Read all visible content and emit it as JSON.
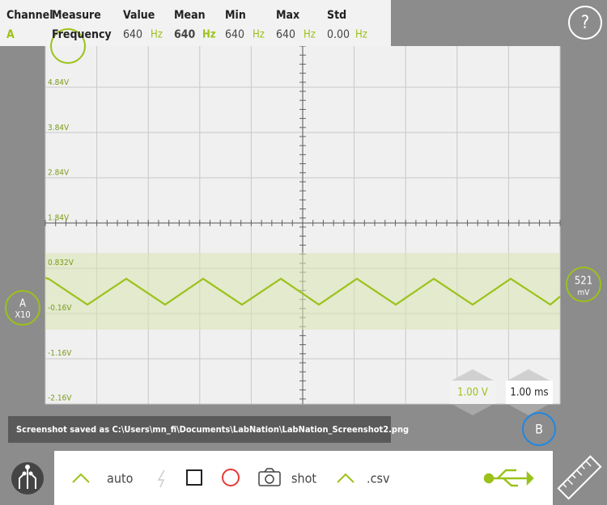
{
  "measurements": {
    "header": [
      "Channel",
      "Measure",
      "Value",
      "Mean",
      "Min",
      "Max",
      "Std"
    ],
    "row": {
      "channel": "A",
      "measure": "Frequency",
      "value": {
        "number": "640",
        "unit": "Hz"
      },
      "mean": {
        "number": "640",
        "unit": "Hz"
      },
      "min": {
        "number": "640",
        "unit": "Hz"
      },
      "max": {
        "number": "640",
        "unit": "Hz"
      },
      "std": {
        "number": "0.00",
        "unit": "Hz"
      }
    }
  },
  "help_button": "?",
  "voltage_labels": [
    "4.84V",
    "3.84V",
    "2.84V",
    "1.84V",
    "0.832V",
    "-0.16V",
    "-1.16V",
    "-2.16V"
  ],
  "channel_a_marker": {
    "name": "A",
    "probe": "X10"
  },
  "trigger_marker": {
    "value": "521",
    "unit": "mV"
  },
  "volts_per_div": "1.00 V",
  "time_per_div": "1.00 ms",
  "channel_b_button": "B",
  "status_message": "Screenshot saved as C:\\Users\\mn_fi\\Documents\\LabNation\\LabNation_Screenshot2.png",
  "toolbar": {
    "auto": "auto",
    "shot": "shot",
    "csv": ".csv"
  }
}
